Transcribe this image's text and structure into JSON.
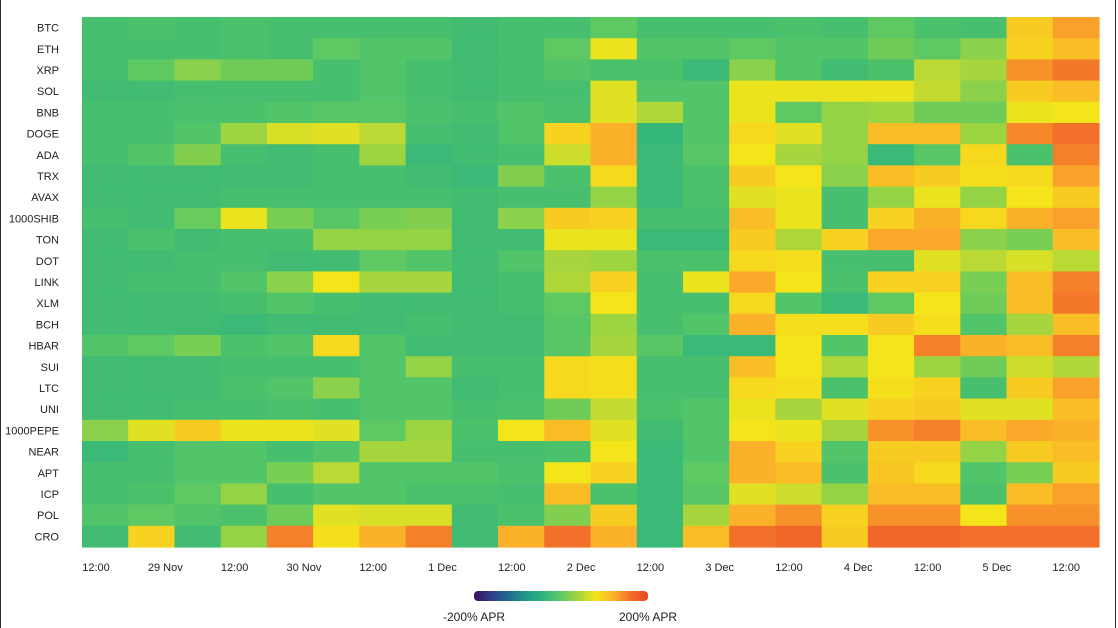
{
  "chart_data": {
    "type": "heatmap",
    "rows": [
      "BTC",
      "ETH",
      "XRP",
      "SOL",
      "BNB",
      "DOGE",
      "ADA",
      "TRX",
      "AVAX",
      "1000SHIB",
      "TON",
      "DOT",
      "LINK",
      "XLM",
      "BCH",
      "HBAR",
      "SUI",
      "LTC",
      "UNI",
      "1000PEPE",
      "NEAR",
      "APT",
      "ICP",
      "POL",
      "CRO"
    ],
    "x_tick_labels": [
      "12:00",
      "29 Nov",
      "12:00",
      "30 Nov",
      "12:00",
      "1 Dec",
      "12:00",
      "2 Dec",
      "12:00",
      "3 Dec",
      "12:00",
      "4 Dec",
      "12:00",
      "5 Dec",
      "12:00"
    ],
    "columns": 22,
    "colorbar": {
      "min": -200,
      "max": 200,
      "min_label": "-200% APR",
      "max_label": "200% APR"
    },
    "colorscale": [
      "#3b0f5e",
      "#2f3f8a",
      "#216b8e",
      "#1f9a8a",
      "#2fb47c",
      "#5ec962",
      "#a6d53d",
      "#f4e51a",
      "#fbb12a",
      "#f3702a",
      "#e8461f"
    ],
    "values": [
      [
        -20,
        -15,
        -20,
        -15,
        -20,
        -20,
        -20,
        -20,
        -25,
        -20,
        -20,
        0,
        -20,
        -20,
        -20,
        -15,
        -20,
        0,
        -15,
        -20,
        100,
        130
      ],
      [
        -20,
        -20,
        -20,
        -15,
        -20,
        0,
        -10,
        -10,
        -25,
        -20,
        0,
        75,
        -10,
        -10,
        0,
        -10,
        -10,
        10,
        0,
        25,
        95,
        110
      ],
      [
        -20,
        0,
        25,
        10,
        10,
        -20,
        -10,
        -20,
        -25,
        -20,
        -10,
        -15,
        -15,
        -30,
        25,
        -10,
        -25,
        -15,
        50,
        40,
        140,
        155
      ],
      [
        -25,
        -25,
        -20,
        -20,
        -20,
        -20,
        -10,
        -20,
        -25,
        -20,
        -20,
        70,
        -10,
        -10,
        75,
        75,
        75,
        75,
        55,
        25,
        100,
        110
      ],
      [
        -20,
        -20,
        -15,
        -15,
        -10,
        -5,
        -5,
        -15,
        -20,
        -10,
        -15,
        70,
        45,
        -10,
        75,
        0,
        30,
        35,
        10,
        10,
        75,
        80
      ],
      [
        -20,
        -20,
        -10,
        35,
        65,
        70,
        50,
        -20,
        -25,
        -10,
        95,
        120,
        -35,
        -10,
        90,
        70,
        30,
        110,
        110,
        35,
        145,
        160
      ],
      [
        -20,
        -10,
        20,
        -20,
        -25,
        -20,
        35,
        -30,
        -25,
        -20,
        60,
        120,
        -30,
        -5,
        80,
        40,
        30,
        -30,
        -5,
        90,
        -15,
        150
      ],
      [
        -25,
        -25,
        -25,
        -25,
        -25,
        -20,
        -20,
        -25,
        -30,
        20,
        -15,
        90,
        -30,
        -15,
        100,
        80,
        25,
        110,
        100,
        85,
        90,
        130
      ],
      [
        -25,
        -25,
        -25,
        -20,
        -20,
        -20,
        -20,
        -20,
        -25,
        -20,
        -20,
        30,
        -30,
        -15,
        70,
        75,
        -20,
        30,
        75,
        30,
        80,
        100
      ],
      [
        -20,
        -25,
        5,
        75,
        15,
        -5,
        15,
        20,
        -25,
        25,
        100,
        95,
        -20,
        -20,
        110,
        75,
        -20,
        95,
        120,
        90,
        120,
        130
      ],
      [
        -25,
        -15,
        -25,
        -20,
        -20,
        30,
        30,
        30,
        -25,
        -25,
        75,
        75,
        -30,
        -30,
        100,
        45,
        95,
        125,
        125,
        25,
        15,
        110
      ],
      [
        -25,
        -25,
        -20,
        -20,
        -25,
        -25,
        0,
        -10,
        -25,
        -10,
        40,
        35,
        -15,
        -15,
        90,
        85,
        -20,
        -20,
        70,
        50,
        65,
        50
      ],
      [
        -25,
        -20,
        -20,
        -10,
        25,
        80,
        40,
        40,
        -25,
        -20,
        45,
        95,
        -20,
        75,
        125,
        80,
        -15,
        95,
        95,
        15,
        110,
        150
      ],
      [
        -25,
        -25,
        -25,
        -20,
        -10,
        -20,
        -25,
        -25,
        -25,
        -20,
        0,
        80,
        -20,
        -20,
        90,
        -10,
        -30,
        0,
        80,
        10,
        110,
        155
      ],
      [
        -25,
        -25,
        -25,
        -30,
        -25,
        -25,
        -25,
        -20,
        -25,
        -25,
        -5,
        35,
        -20,
        -10,
        120,
        85,
        85,
        100,
        85,
        -10,
        40,
        110
      ],
      [
        -10,
        0,
        15,
        -15,
        -10,
        90,
        -10,
        -25,
        -25,
        -25,
        -5,
        40,
        -5,
        -30,
        -30,
        80,
        -10,
        80,
        150,
        120,
        110,
        150
      ],
      [
        -25,
        -25,
        -25,
        -20,
        -20,
        -20,
        -10,
        30,
        -20,
        -20,
        90,
        85,
        -20,
        -20,
        110,
        80,
        45,
        80,
        35,
        10,
        60,
        45
      ],
      [
        -25,
        -25,
        -25,
        -15,
        -10,
        25,
        -10,
        -10,
        -25,
        -20,
        90,
        85,
        -20,
        -20,
        90,
        85,
        -15,
        85,
        95,
        -20,
        100,
        130
      ],
      [
        -25,
        -25,
        -20,
        -20,
        -15,
        -20,
        -10,
        -10,
        -20,
        -15,
        10,
        55,
        -15,
        -10,
        75,
        40,
        70,
        95,
        100,
        70,
        70,
        110
      ],
      [
        25,
        70,
        100,
        75,
        75,
        70,
        0,
        35,
        -15,
        80,
        110,
        70,
        -25,
        -10,
        80,
        75,
        40,
        140,
        150,
        110,
        125,
        120
      ],
      [
        -30,
        -20,
        -10,
        -10,
        -20,
        -10,
        40,
        40,
        -20,
        -20,
        -15,
        80,
        -30,
        -10,
        120,
        95,
        -10,
        100,
        100,
        30,
        100,
        110
      ],
      [
        -20,
        -20,
        -10,
        -10,
        15,
        50,
        -10,
        -10,
        -10,
        -15,
        80,
        95,
        -30,
        0,
        120,
        110,
        -15,
        105,
        90,
        -10,
        15,
        100
      ],
      [
        -20,
        -15,
        0,
        30,
        -20,
        -10,
        -10,
        -15,
        -15,
        -20,
        110,
        -15,
        -30,
        -5,
        70,
        60,
        30,
        110,
        110,
        -15,
        110,
        130
      ],
      [
        -10,
        0,
        -10,
        -15,
        10,
        70,
        65,
        65,
        -25,
        -15,
        20,
        100,
        -30,
        40,
        120,
        140,
        95,
        140,
        140,
        80,
        140,
        140
      ],
      [
        -25,
        95,
        -25,
        30,
        150,
        85,
        120,
        150,
        -25,
        120,
        160,
        120,
        -30,
        110,
        160,
        170,
        100,
        170,
        170,
        160,
        160,
        160
      ]
    ]
  }
}
